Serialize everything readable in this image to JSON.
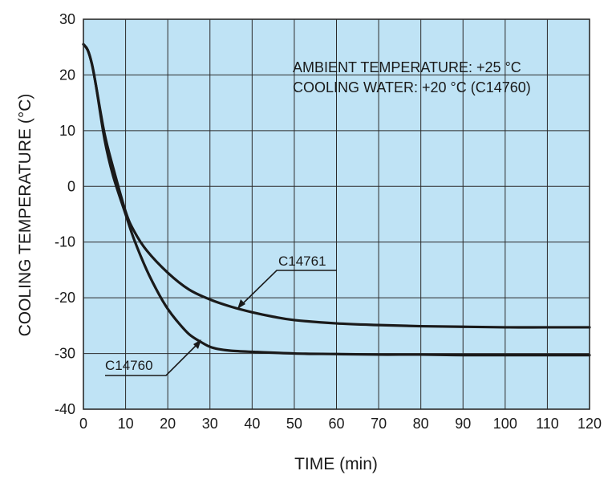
{
  "chart_data": {
    "type": "line",
    "title": "",
    "xlabel": "TIME (min)",
    "ylabel": "COOLING TEMPERATURE (°C)",
    "xlim": [
      0,
      120
    ],
    "ylim": [
      -40,
      30
    ],
    "grid": true,
    "x_ticks": [
      "0",
      "10",
      "20",
      "30",
      "40",
      "50",
      "60",
      "70",
      "80",
      "90",
      "100",
      "110",
      "120"
    ],
    "y_ticks": [
      "30",
      "20",
      "10",
      "0",
      "-10",
      "-20",
      "-30",
      "-40"
    ],
    "annotations": [
      "AMBIENT TEMPERATURE: +25 °C",
      "COOLING WATER: +20 °C (C14760)"
    ],
    "series": [
      {
        "name": "C14760",
        "x": [
          0,
          1,
          2,
          3,
          5,
          7,
          10,
          12,
          15,
          18,
          20,
          22,
          25,
          28,
          30,
          32,
          35,
          40,
          50,
          60,
          70,
          80,
          90,
          100,
          110,
          120
        ],
        "y": [
          25.5,
          24.5,
          22,
          18,
          8.5,
          2,
          -5,
          -9.5,
          -15,
          -19.5,
          -22,
          -24,
          -26.5,
          -28,
          -28.8,
          -29.2,
          -29.5,
          -29.7,
          -30,
          -30.1,
          -30.2,
          -30.2,
          -30.3,
          -30.3,
          -30.3,
          -30.3
        ]
      },
      {
        "name": "C14761",
        "x": [
          0,
          1,
          2,
          3,
          5,
          7,
          10,
          12,
          15,
          20,
          25,
          30,
          35,
          40,
          45,
          50,
          60,
          70,
          80,
          90,
          100,
          110,
          120
        ],
        "y": [
          25.5,
          24.5,
          22,
          18,
          9.5,
          3.5,
          -4.5,
          -8,
          -11.5,
          -15.5,
          -18.5,
          -20.3,
          -21.6,
          -22.6,
          -23.4,
          -24,
          -24.6,
          -24.9,
          -25.1,
          -25.2,
          -25.3,
          -25.3,
          -25.3
        ]
      }
    ],
    "series_labels": [
      "C14761",
      "C14760"
    ]
  },
  "colors": {
    "plot_background": "#bfe3f5",
    "grid": "#2b2b2b",
    "curve": "#1a1a1a",
    "text": "#1a1a1a"
  }
}
